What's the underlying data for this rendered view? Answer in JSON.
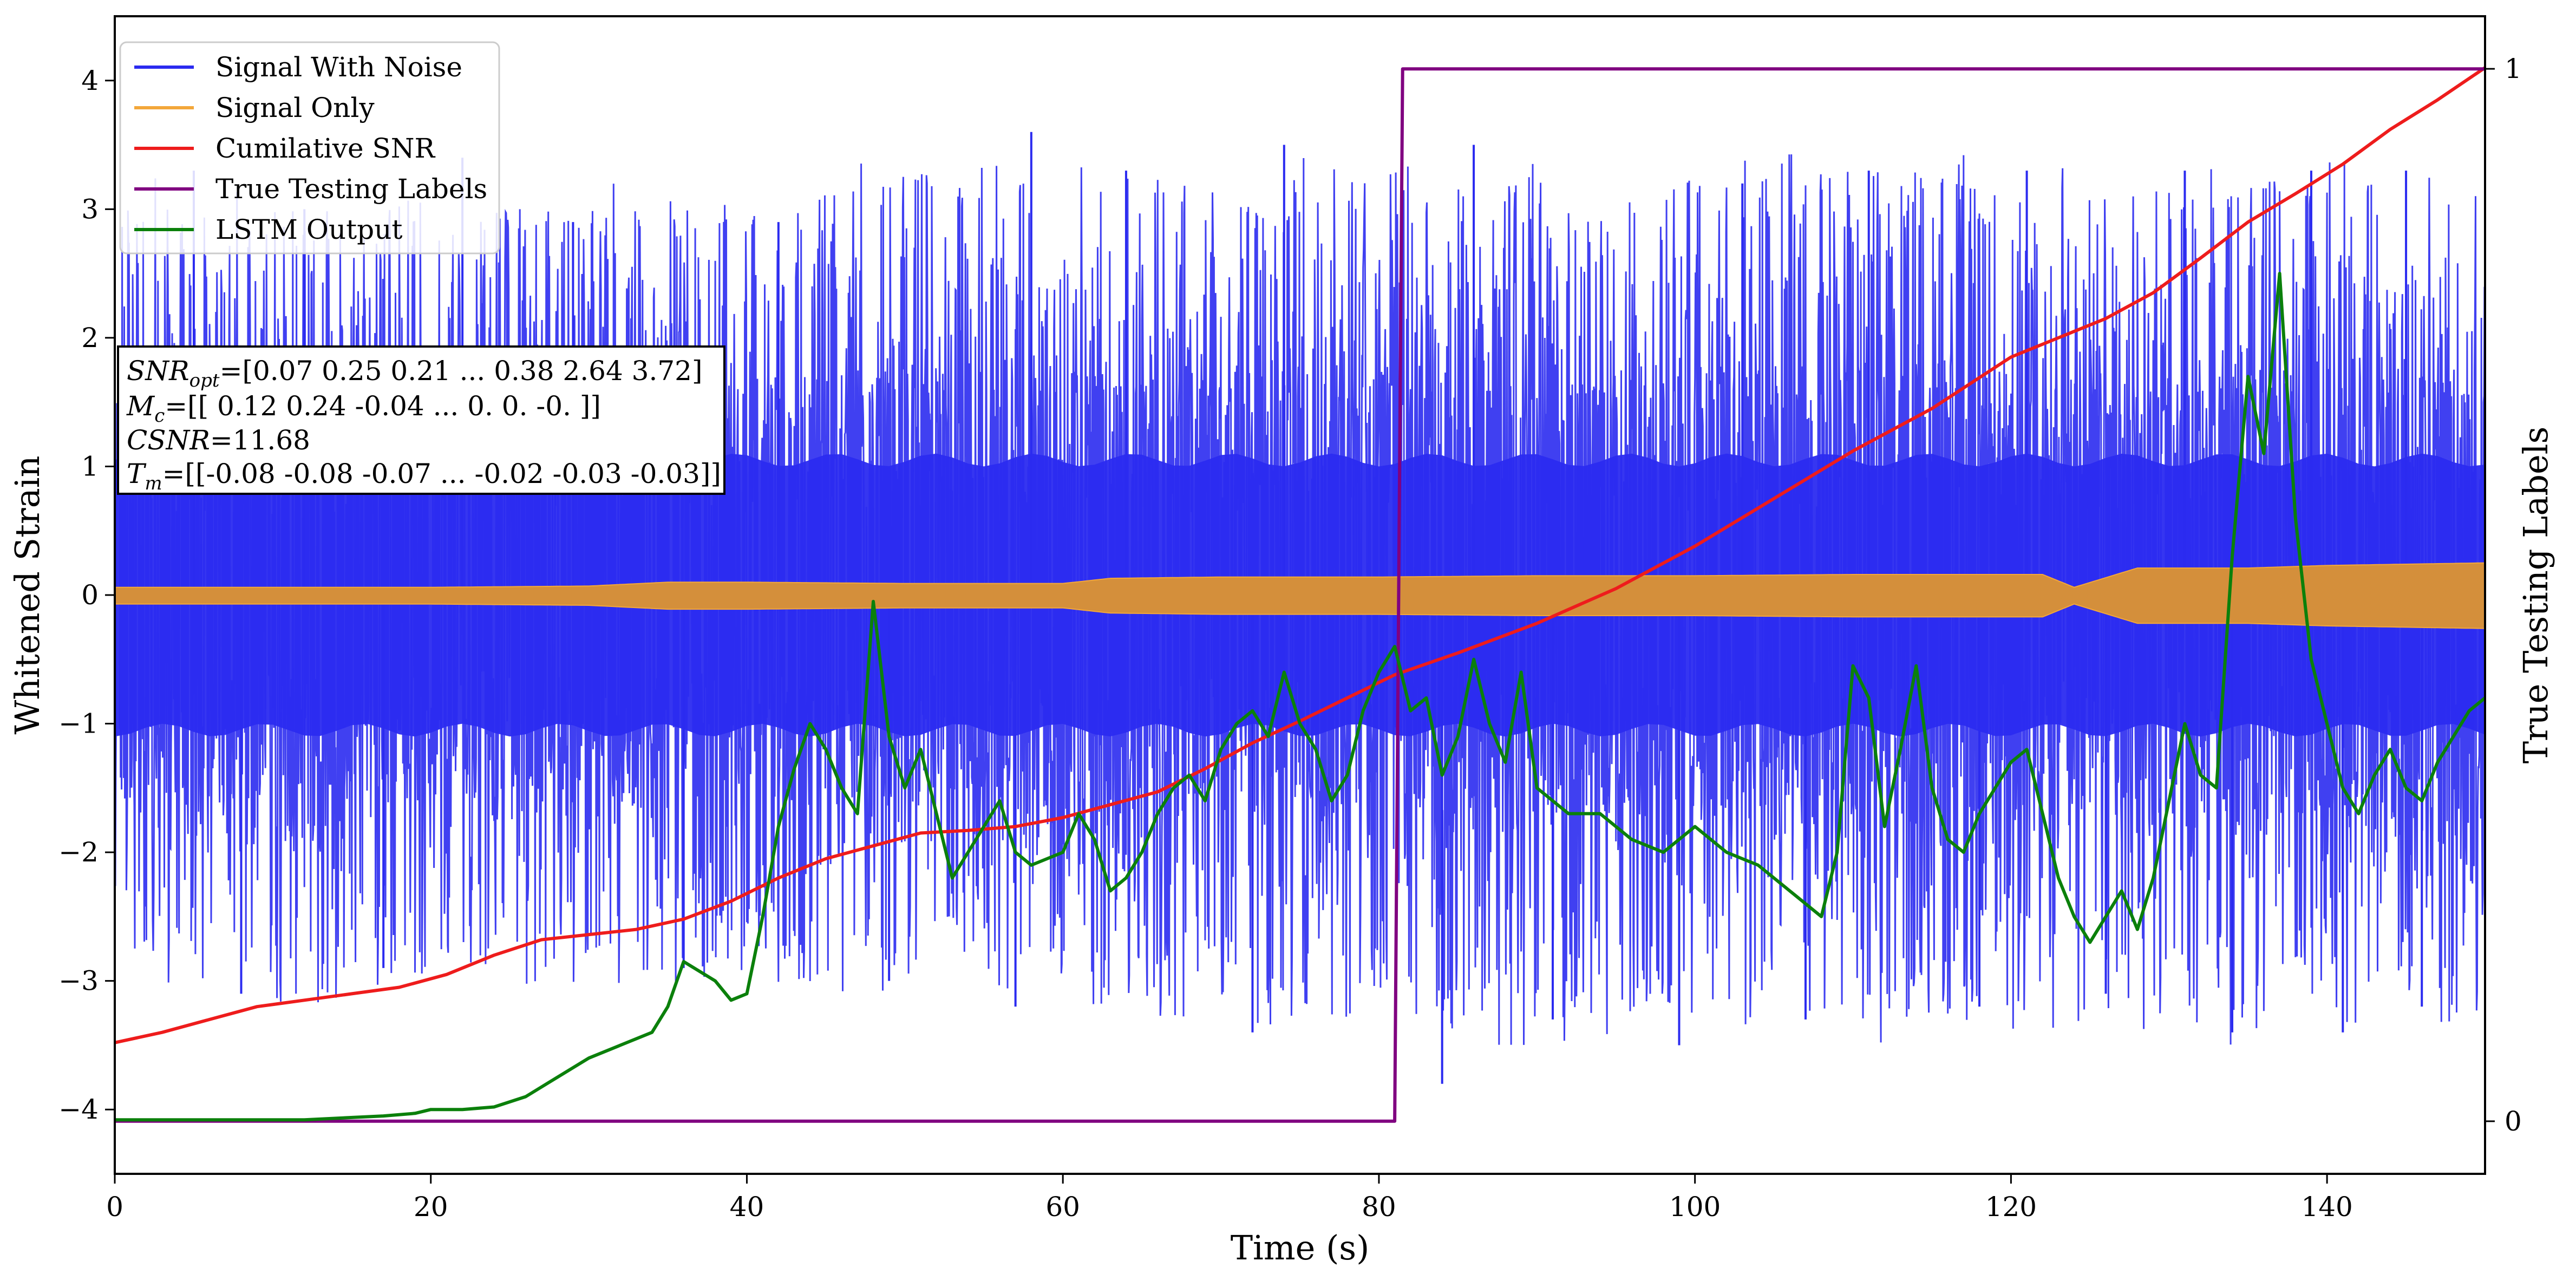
{
  "chart_data": {
    "type": "line",
    "title": "",
    "xlabel": "Time (s)",
    "ylabel": "Whitened Strain",
    "ylabel_right": "True Testing Labels",
    "xlim": [
      0,
      150
    ],
    "ylim": [
      -4.5,
      4.5
    ],
    "ylim_right": [
      -0.05,
      1.05
    ],
    "x_ticks": [
      0,
      20,
      40,
      60,
      80,
      100,
      120,
      140
    ],
    "y_ticks": [
      -4,
      -3,
      -2,
      -1,
      0,
      1,
      2,
      3,
      4
    ],
    "y_ticks_right": [
      0,
      1
    ],
    "grid": false,
    "legend_position": "top-left",
    "annotation": {
      "line1": {
        "label": "SNR",
        "sub": "opt",
        "value": "=[0.07 0.25 0.21 ... 0.38 2.64 3.72]"
      },
      "line2": {
        "label": "M",
        "sub": "c",
        "value": "=[[ 0.12  0.24 -0.04 ...  0.    0.   -0.  ]]"
      },
      "line3": {
        "label": "CSNR",
        "sub": "",
        "value": "=11.68"
      },
      "line4": {
        "label": "T",
        "sub": "m",
        "value": "=[[-0.08 -0.08 -0.07 ... -0.02 -0.03 -0.03]]"
      }
    },
    "series": [
      {
        "name": "Signal With Noise",
        "color": "#2b2bf0",
        "axis": "left",
        "style": "dense-noise",
        "envelope_min": [
          -3.0,
          -3.2,
          -3.1,
          -3.0,
          -3.2,
          -3.1,
          -3.4,
          -3.3,
          -3.5,
          -3.6,
          -3.3,
          -3.5,
          -3.4,
          -3.5,
          -3.6,
          -3.5
        ],
        "envelope_max": [
          3.3,
          3.1,
          3.3,
          3.2,
          3.2,
          3.5,
          3.4,
          3.3,
          3.5,
          3.4,
          3.4,
          3.5,
          3.4,
          3.3,
          3.5,
          3.2
        ],
        "spike_mins": [
          [
            8,
            -3.1
          ],
          [
            17,
            -2.9
          ],
          [
            36,
            -2.9
          ],
          [
            49,
            -3.0
          ],
          [
            57,
            -3.2
          ],
          [
            72,
            -3.4
          ],
          [
            84,
            -3.8
          ],
          [
            91,
            -3.3
          ],
          [
            99,
            -3.5
          ],
          [
            107,
            -3.3
          ],
          [
            118,
            -3.2
          ],
          [
            126,
            -3.1
          ],
          [
            134,
            -3.4
          ],
          [
            141,
            -3.4
          ],
          [
            146,
            -3.2
          ]
        ],
        "spike_maxs": [
          [
            5,
            3.3
          ],
          [
            12,
            3.0
          ],
          [
            22,
            3.4
          ],
          [
            29,
            2.9
          ],
          [
            42,
            2.9
          ],
          [
            58,
            3.6
          ],
          [
            64,
            3.3
          ],
          [
            74,
            3.5
          ],
          [
            86,
            3.5
          ],
          [
            103,
            3.2
          ],
          [
            111,
            3.3
          ],
          [
            121,
            3.3
          ],
          [
            131,
            3.3
          ],
          [
            139,
            3.3
          ],
          [
            145,
            3.3
          ]
        ]
      },
      {
        "name": "Signal Only",
        "color": "#f3a73a",
        "fill_color": "#d48f3b",
        "axis": "left",
        "style": "band",
        "x": [
          0,
          10,
          20,
          30,
          35,
          40,
          50,
          60,
          63,
          70,
          80,
          90,
          100,
          110,
          122,
          124,
          128,
          135,
          140,
          145,
          150
        ],
        "amplitude": [
          0.05,
          0.05,
          0.05,
          0.06,
          0.09,
          0.09,
          0.08,
          0.08,
          0.12,
          0.13,
          0.13,
          0.14,
          0.14,
          0.15,
          0.15,
          0.05,
          0.2,
          0.2,
          0.22,
          0.23,
          0.24
        ]
      },
      {
        "name": "Cumilative SNR",
        "color": "#ee1c1c",
        "axis": "left",
        "x": [
          0,
          3,
          6,
          9,
          12,
          15,
          18,
          21,
          24,
          27,
          30,
          33,
          36,
          39,
          42,
          45,
          48,
          51,
          54,
          57,
          60,
          63,
          66,
          69,
          72,
          75,
          78,
          81,
          85,
          90,
          95,
          100,
          105,
          110,
          115,
          120,
          123,
          126,
          129,
          132,
          135,
          138,
          141,
          144,
          147,
          150
        ],
        "y": [
          -3.48,
          -3.4,
          -3.3,
          -3.2,
          -3.15,
          -3.1,
          -3.05,
          -2.95,
          -2.8,
          -2.68,
          -2.64,
          -2.6,
          -2.52,
          -2.38,
          -2.2,
          -2.05,
          -1.95,
          -1.85,
          -1.83,
          -1.8,
          -1.73,
          -1.63,
          -1.53,
          -1.35,
          -1.15,
          -0.98,
          -0.8,
          -0.62,
          -0.45,
          -0.22,
          0.05,
          0.38,
          0.75,
          1.12,
          1.45,
          1.85,
          2.0,
          2.15,
          2.35,
          2.62,
          2.9,
          3.12,
          3.35,
          3.62,
          3.85,
          4.1
        ]
      },
      {
        "name": "True Testing Labels",
        "color": "#800080",
        "axis": "right",
        "x": [
          0,
          81,
          81.5,
          150
        ],
        "y": [
          0,
          0,
          1,
          1
        ]
      },
      {
        "name": "LSTM Output",
        "color": "#0b800b",
        "axis": "left",
        "x": [
          0,
          12,
          17,
          19,
          20,
          22,
          24,
          26,
          28,
          30,
          32,
          34,
          35,
          36,
          38,
          39,
          40,
          41,
          42,
          43,
          44,
          45,
          46,
          47,
          48,
          49,
          50,
          51,
          52,
          53,
          54,
          55,
          56,
          57,
          58,
          60,
          61,
          62,
          63,
          64,
          65,
          66,
          67,
          68,
          69,
          70,
          71,
          72,
          73,
          74,
          75,
          76,
          77,
          78,
          79,
          80,
          81,
          82,
          83,
          84,
          85,
          86,
          87,
          88,
          89,
          90,
          92,
          94,
          96,
          98,
          100,
          102,
          104,
          106,
          108,
          109,
          110,
          111,
          112,
          113,
          114,
          115,
          116,
          117,
          118,
          119,
          120,
          121,
          122,
          123,
          124,
          125,
          126,
          127,
          128,
          129,
          130,
          131,
          132,
          133,
          134,
          135,
          136,
          137,
          138,
          139,
          140,
          141,
          142,
          143,
          144,
          145,
          146,
          147,
          148,
          149,
          150
        ],
        "y": [
          -4.08,
          -4.08,
          -4.05,
          -4.03,
          -4.0,
          -4.0,
          -3.98,
          -3.9,
          -3.75,
          -3.6,
          -3.5,
          -3.4,
          -3.2,
          -2.85,
          -3.0,
          -3.15,
          -3.1,
          -2.5,
          -1.8,
          -1.35,
          -1.0,
          -1.2,
          -1.5,
          -1.7,
          -0.05,
          -1.1,
          -1.5,
          -1.2,
          -1.7,
          -2.2,
          -2.0,
          -1.8,
          -1.6,
          -2.0,
          -2.1,
          -2.0,
          -1.7,
          -1.9,
          -2.3,
          -2.2,
          -2.0,
          -1.7,
          -1.5,
          -1.4,
          -1.6,
          -1.2,
          -1.0,
          -0.9,
          -1.1,
          -0.6,
          -1.0,
          -1.2,
          -1.6,
          -1.4,
          -0.9,
          -0.6,
          -0.4,
          -0.9,
          -0.8,
          -1.4,
          -1.1,
          -0.5,
          -1.0,
          -1.3,
          -0.6,
          -1.5,
          -1.7,
          -1.7,
          -1.9,
          -2.0,
          -1.8,
          -2.0,
          -2.1,
          -2.3,
          -2.5,
          -2.0,
          -0.55,
          -0.8,
          -1.8,
          -1.2,
          -0.55,
          -1.5,
          -1.9,
          -2.0,
          -1.7,
          -1.5,
          -1.3,
          -1.2,
          -1.7,
          -2.2,
          -2.5,
          -2.7,
          -2.5,
          -2.3,
          -2.6,
          -2.2,
          -1.6,
          -1.0,
          -1.4,
          -1.5,
          0.3,
          1.7,
          1.1,
          2.5,
          0.6,
          -0.5,
          -1.0,
          -1.5,
          -1.7,
          -1.4,
          -1.2,
          -1.5,
          -1.6,
          -1.3,
          -1.1,
          -0.9,
          -0.8
        ]
      }
    ]
  }
}
